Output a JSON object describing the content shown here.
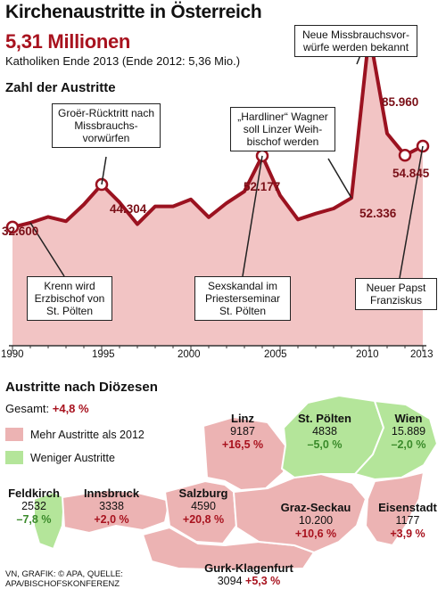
{
  "header": {
    "title": "Kirchenaustritte in Österreich",
    "big_number": "5,31 Millionen",
    "subtitle": "Katholiken Ende 2013 (Ende 2012: 5,36 Mio.)",
    "section_title": "Zahl der Austritte"
  },
  "chart_data": {
    "type": "area",
    "title": "Zahl der Austritte",
    "x": [
      1990,
      1991,
      1992,
      1993,
      1994,
      1995,
      1996,
      1997,
      1998,
      1999,
      2000,
      2001,
      2002,
      2003,
      2004,
      2005,
      2006,
      2007,
      2008,
      2009,
      2010,
      2011,
      2012,
      2013
    ],
    "values": [
      32600,
      33800,
      35400,
      34200,
      38800,
      44304,
      39400,
      33400,
      38300,
      38300,
      40200,
      35300,
      39200,
      42400,
      52177,
      41300,
      34700,
      36300,
      37700,
      40600,
      85960,
      58300,
      52336,
      54845
    ],
    "x_tick_labels": [
      "1990",
      "1995",
      "2000",
      "2005",
      "2010",
      "2013"
    ],
    "xlim": [
      1990,
      2013
    ],
    "ylim": [
      0,
      95000
    ],
    "labeled_values": [
      {
        "x": 1990,
        "label": "32.600"
      },
      {
        "x": 1995,
        "label": "44.304"
      },
      {
        "x": 2004,
        "label": "52.177"
      },
      {
        "x": 2010,
        "label": "85.960"
      },
      {
        "x": 2012,
        "label": "52.336"
      },
      {
        "x": 2013,
        "label": "54.845"
      }
    ],
    "annotations": [
      {
        "x": 1995,
        "text": "Groër-Rücktritt nach Missbrauchs-vorwürfen"
      },
      {
        "x": 1991,
        "text": "Krenn wird Erzbischof von St. Pölten"
      },
      {
        "x": 2004,
        "text": "Sexskandal im Priesterseminar St. Pölten"
      },
      {
        "x": 2009,
        "text": "„Hardliner“ Wagner soll Linzer Weih-bischof werden"
      },
      {
        "x": 2010,
        "text": "Neue Missbrauchsvor-würfe werden bekannt"
      },
      {
        "x": 2013,
        "text": "Neuer Papst Franziskus"
      }
    ],
    "colors": {
      "line": "#9b1220",
      "fill": "#f2c4c4",
      "marker_fill": "#ffffff"
    }
  },
  "map": {
    "section_title": "Austritte nach Diözesen",
    "total_label": "Gesamt:",
    "total_value": "+4,8 %",
    "legend": [
      {
        "label": "Mehr Austritte als 2012",
        "color": "#ecb3b3"
      },
      {
        "label": "Weniger Austritte",
        "color": "#b4e59a"
      }
    ],
    "dioceses": [
      {
        "name": "Linz",
        "count": "9187",
        "change": "+16,5 %",
        "trend": "more"
      },
      {
        "name": "St. Pölten",
        "count": "4838",
        "change": "–5,0 %",
        "trend": "less"
      },
      {
        "name": "Wien",
        "count": "15.889",
        "change": "–2,0 %",
        "trend": "less"
      },
      {
        "name": "Feldkirch",
        "count": "2532",
        "change": "–7,8 %",
        "trend": "less"
      },
      {
        "name": "Innsbruck",
        "count": "3338",
        "change": "+2,0 %",
        "trend": "more"
      },
      {
        "name": "Salzburg",
        "count": "4590",
        "change": "+20,8 %",
        "trend": "more"
      },
      {
        "name": "Graz-Seckau",
        "count": "10.200",
        "change": "+10,6 %",
        "trend": "more"
      },
      {
        "name": "Eisenstadt",
        "count": "1177",
        "change": "+3,9 %",
        "trend": "more"
      },
      {
        "name": "Gurk-Klagenfurt",
        "count": "3094",
        "change": "+5,3 %",
        "trend": "more"
      }
    ]
  },
  "source": {
    "line1": "VN, GRAFIK: © APA, QUELLE:",
    "line2": "APA/BISCHOFSKONFERENZ"
  }
}
